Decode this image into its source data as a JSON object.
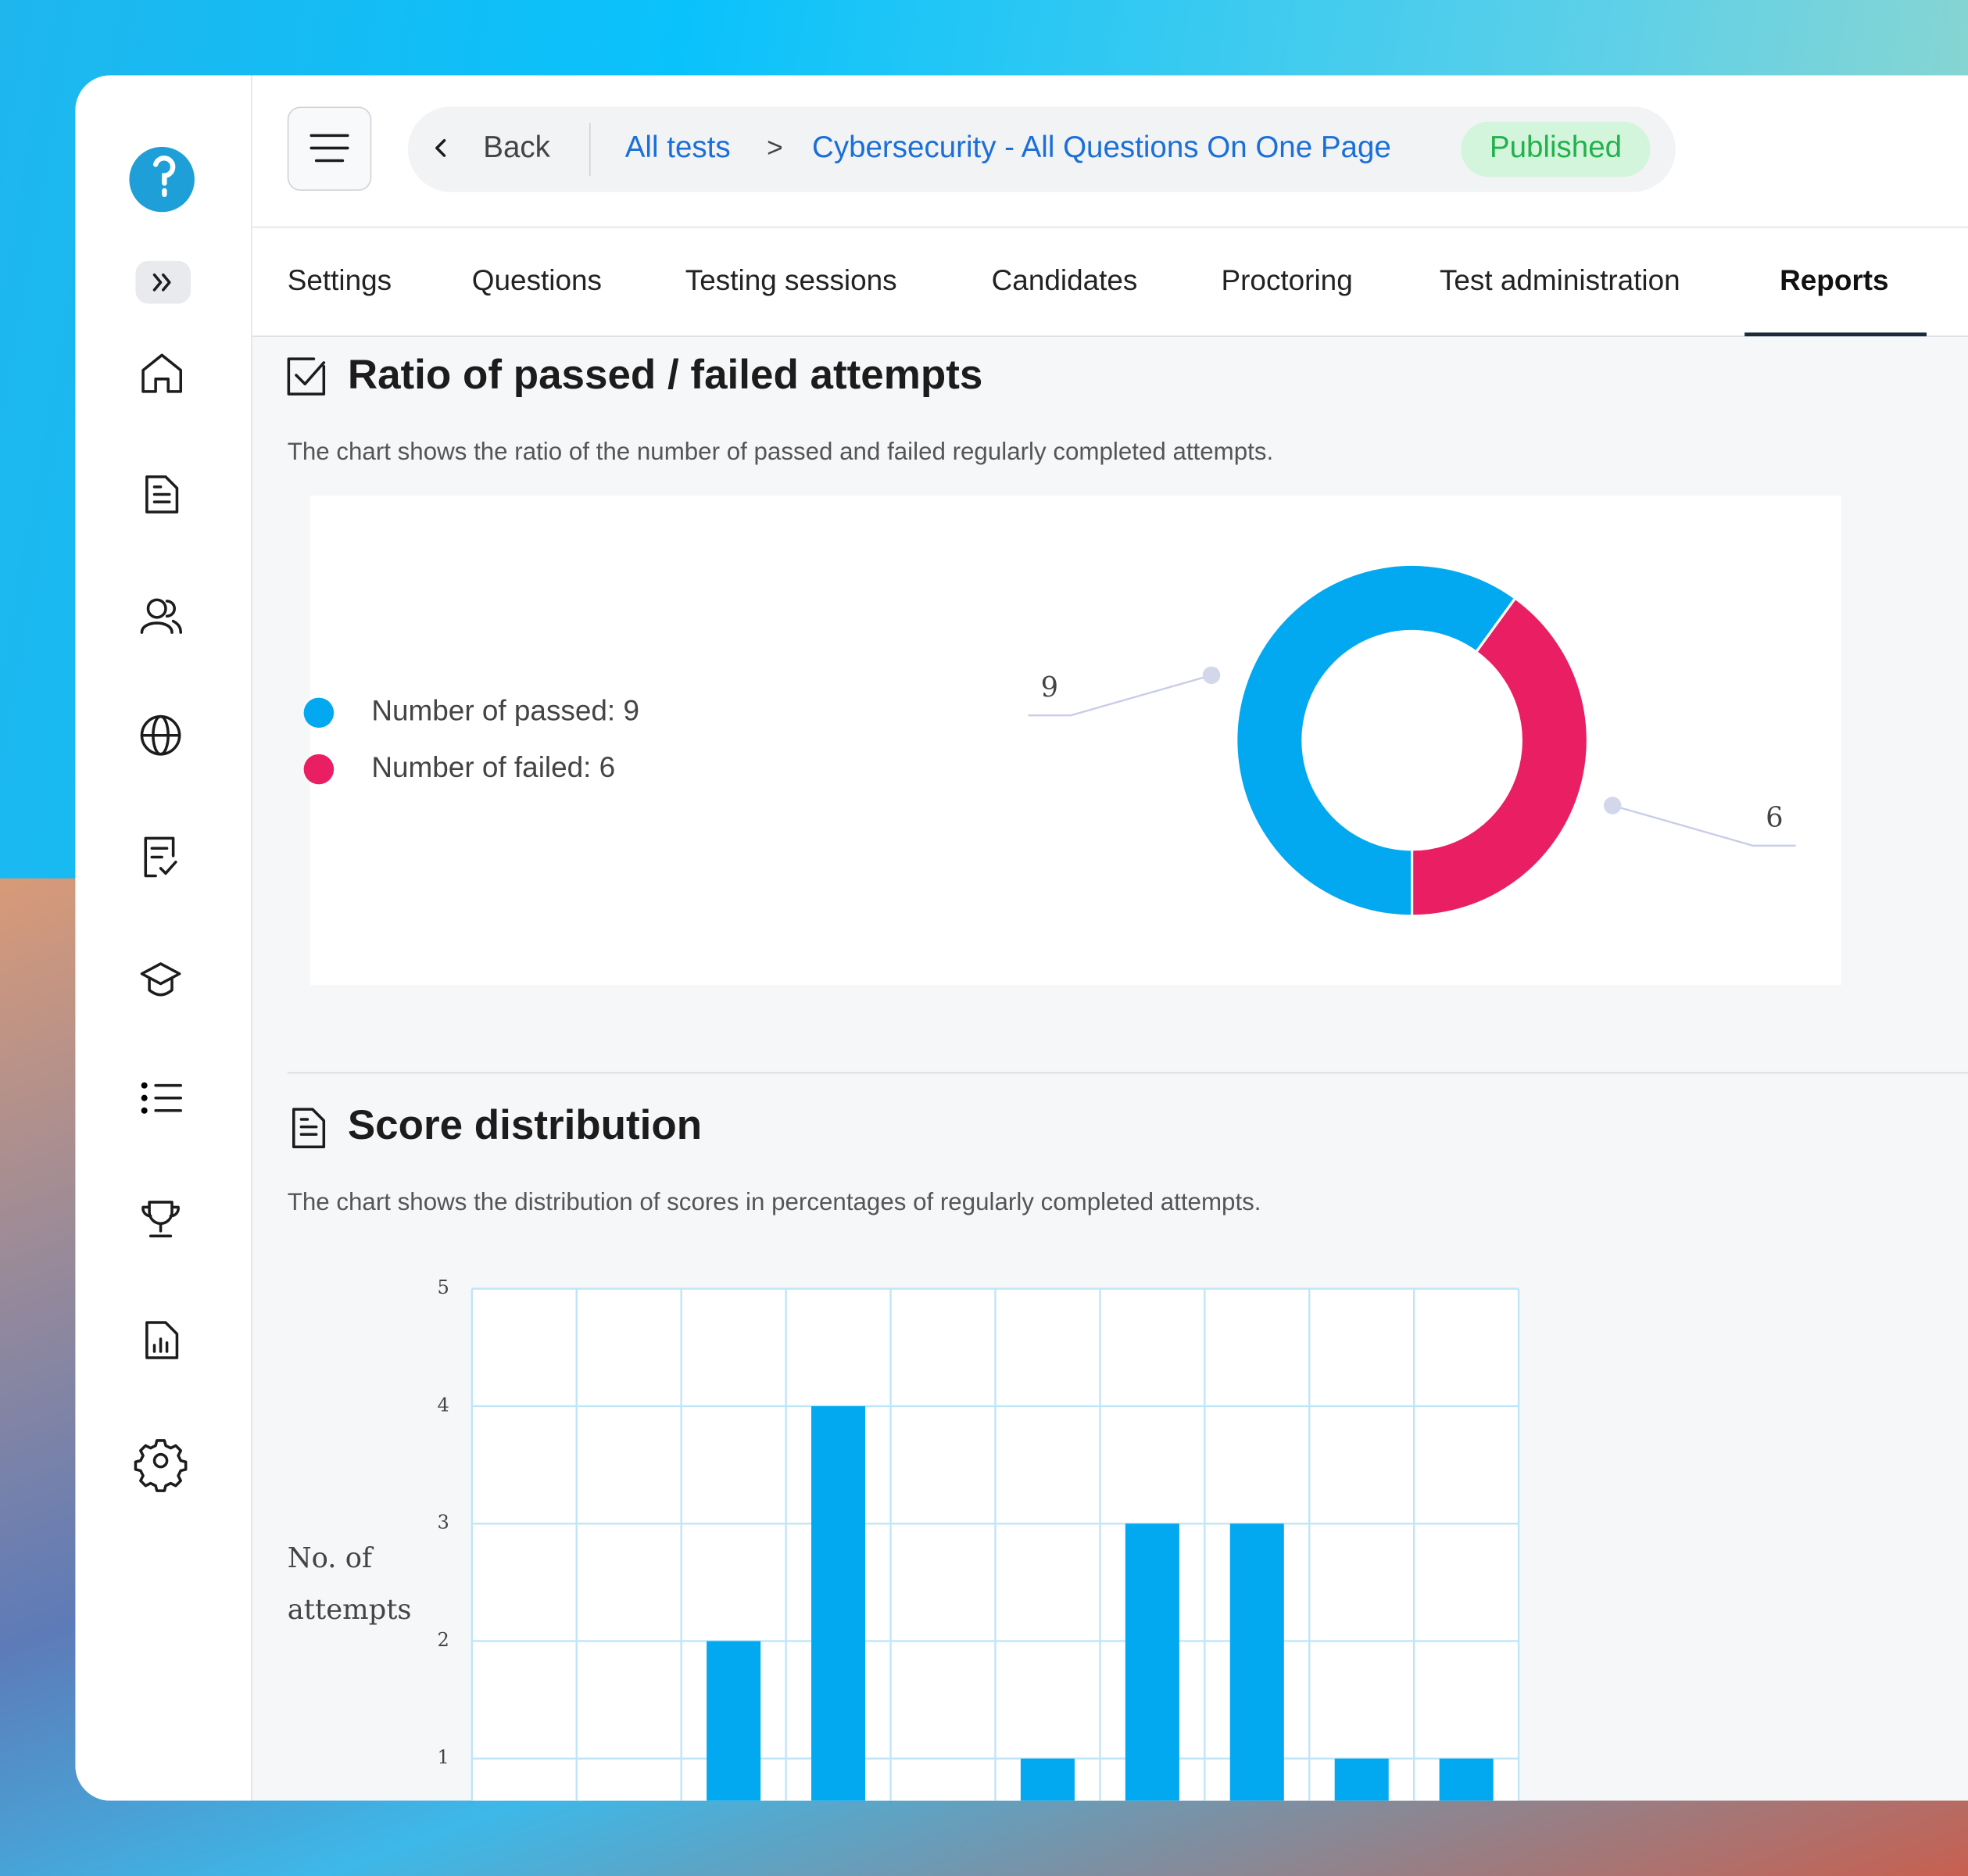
{
  "header": {
    "back": "Back",
    "breadcrumb": [
      "All tests",
      "Cybersecurity - All Questions On One Page"
    ],
    "separator": ">",
    "status": "Published"
  },
  "tabs": [
    "Settings",
    "Questions",
    "Testing sessions",
    "Candidates",
    "Proctoring",
    "Test administration",
    "Reports"
  ],
  "chart_data": [
    {
      "type": "pie",
      "title": "Ratio of passed / failed attempts",
      "subtitle": "The chart shows the ratio of the number of passed and failed regularly completed attempts.",
      "categories": [
        "Number of passed: 9",
        "Number of failed: 6"
      ],
      "values": [
        9,
        6
      ],
      "colors": [
        "#03a9f0",
        "#e91e63"
      ],
      "donut": true
    },
    {
      "type": "bar",
      "title": "Score distribution",
      "subtitle": "The chart shows the distribution of scores in percentages of regularly completed attempts.",
      "ylabel": "No. of attempts",
      "categories": [
        null,
        null,
        null,
        null,
        null,
        null,
        null,
        null,
        null,
        null
      ],
      "values": [
        0,
        0,
        2,
        4,
        0,
        1,
        3,
        3,
        1,
        1
      ],
      "color": "#03a9f0",
      "ylim": [
        0,
        5
      ],
      "yticks": [
        1,
        2,
        3,
        4,
        5
      ],
      "grid": true
    }
  ]
}
